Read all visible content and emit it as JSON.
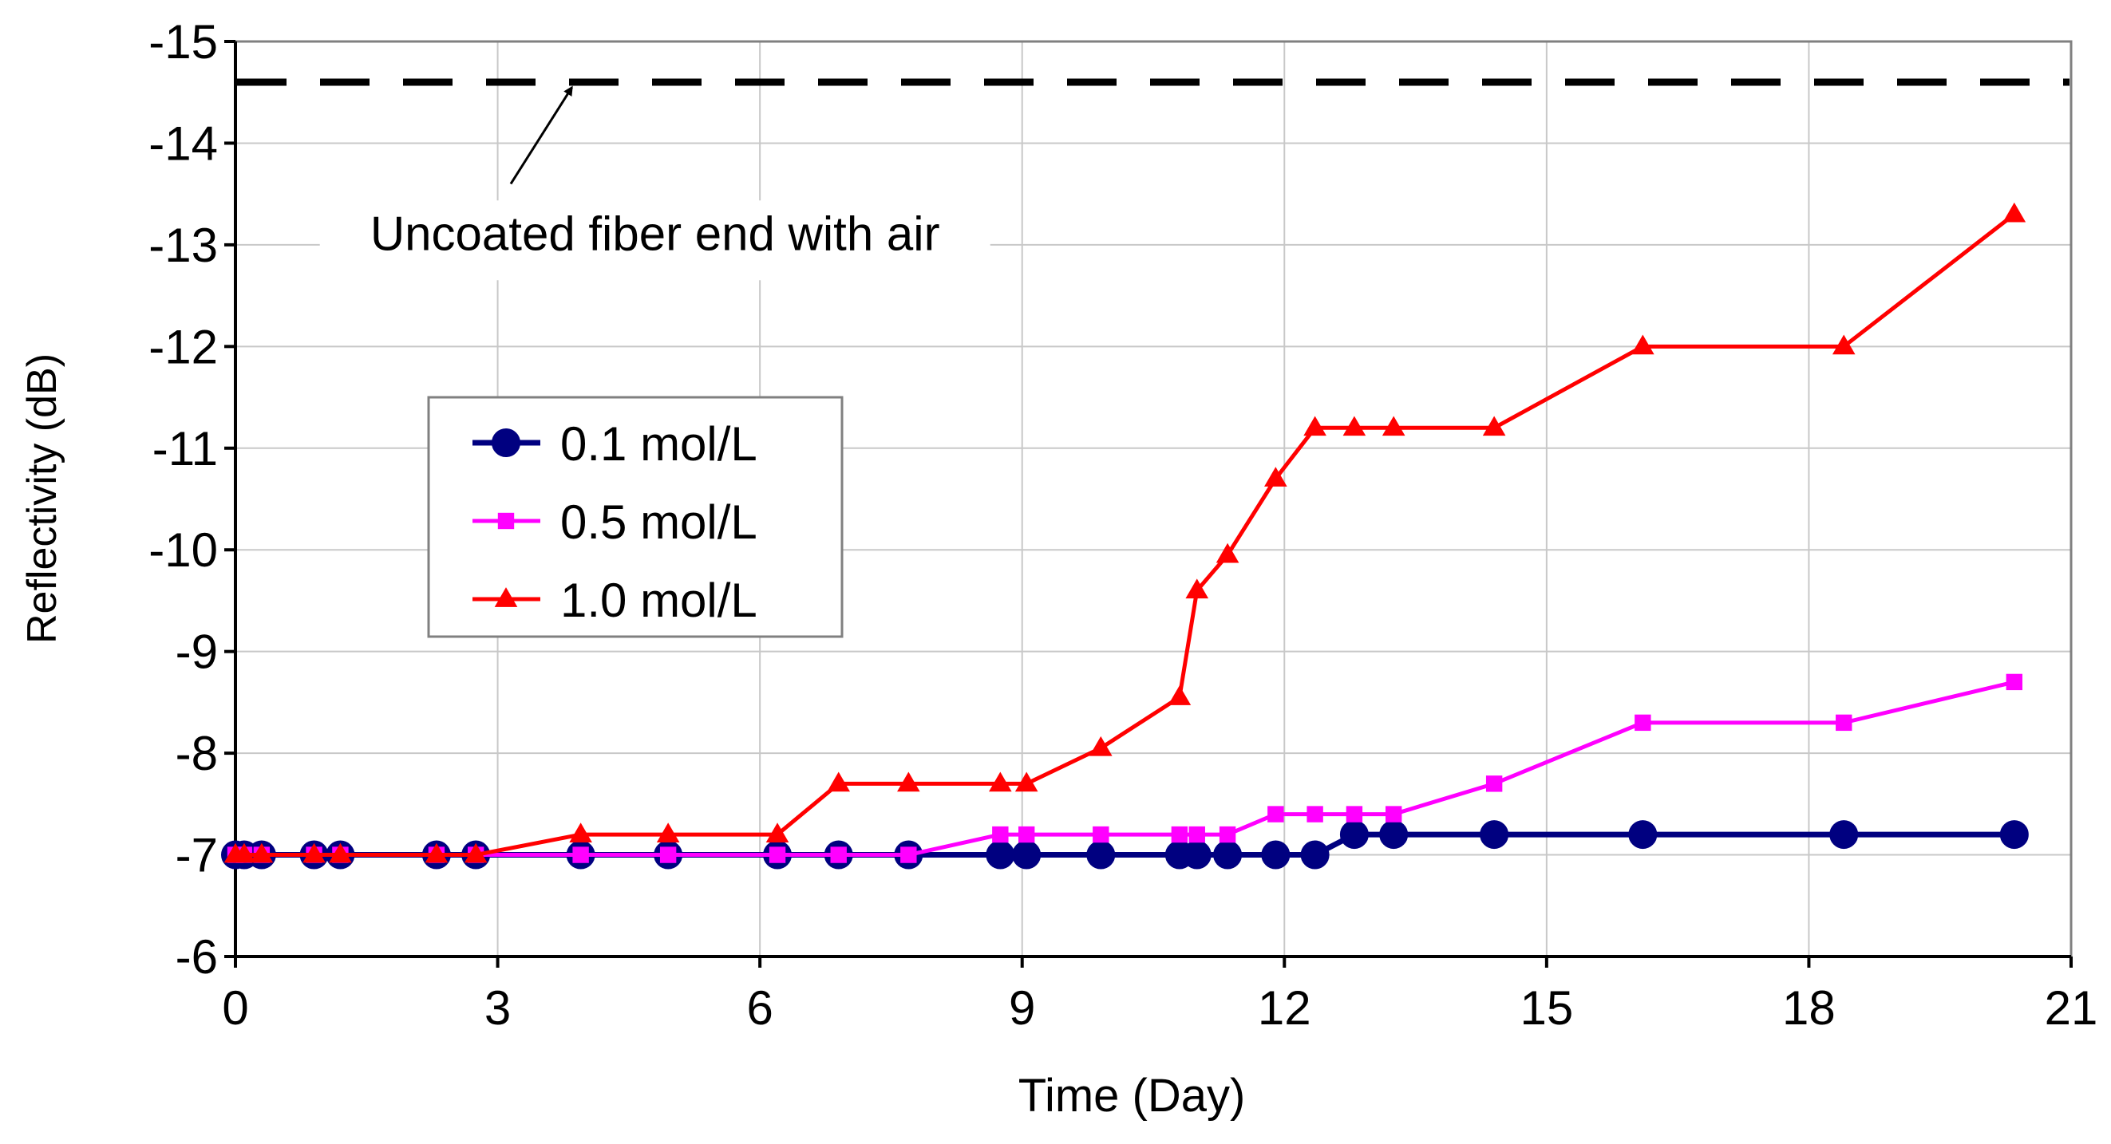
{
  "chart_data": {
    "type": "line",
    "title": "",
    "xlabel": "Time (Day)",
    "ylabel": "Reflectivity (dB)",
    "xlim": [
      0,
      21
    ],
    "ylim": [
      -6,
      -15
    ],
    "y_axis_inverted": true,
    "grid": true,
    "xticks": [
      0,
      3,
      6,
      9,
      12,
      15,
      18,
      21
    ],
    "yticks": [
      -15,
      -14,
      -13,
      -12,
      -11,
      -10,
      -9,
      -8,
      -7,
      -6
    ],
    "legend_position": "upper-left",
    "series": [
      {
        "name": "0.1 mol/L",
        "color": "#000080",
        "marker": "circle",
        "x": [
          0,
          0.1,
          0.3,
          0.9,
          1.2,
          2.3,
          2.75,
          3.95,
          4.95,
          6.2,
          6.9,
          7.7,
          8.75,
          9.05,
          9.9,
          10.8,
          11.0,
          11.35,
          11.9,
          12.35,
          12.8,
          13.25,
          14.4,
          16.1,
          18.4,
          20.35
        ],
        "y": [
          -7,
          -7,
          -7,
          -7,
          -7,
          -7,
          -7,
          -7,
          -7,
          -7,
          -7,
          -7,
          -7,
          -7,
          -7,
          -7,
          -7,
          -7,
          -7,
          -7,
          -7.2,
          -7.2,
          -7.2,
          -7.2,
          -7.2,
          -7.2
        ]
      },
      {
        "name": "0.5 mol/L",
        "color": "#ff00ff",
        "marker": "square",
        "x": [
          0,
          0.1,
          0.3,
          0.9,
          1.2,
          2.3,
          2.75,
          3.95,
          4.95,
          6.2,
          6.9,
          7.7,
          8.75,
          9.05,
          9.9,
          10.8,
          11.0,
          11.35,
          11.9,
          12.35,
          12.8,
          13.25,
          14.4,
          16.1,
          18.4,
          20.35
        ],
        "y": [
          -7,
          -7,
          -7,
          -7,
          -7,
          -7,
          -7,
          -7,
          -7,
          -7,
          -7,
          -7,
          -7.2,
          -7.2,
          -7.2,
          -7.2,
          -7.2,
          -7.2,
          -7.4,
          -7.4,
          -7.4,
          -7.4,
          -7.7,
          -8.3,
          -8.3,
          -8.7
        ]
      },
      {
        "name": "1.0 mol/L",
        "color": "#ff0000",
        "marker": "triangle",
        "x": [
          0,
          0.1,
          0.3,
          0.9,
          1.2,
          2.3,
          2.75,
          3.95,
          4.95,
          6.2,
          6.9,
          7.7,
          8.75,
          9.05,
          9.9,
          10.8,
          11.0,
          11.35,
          11.9,
          12.35,
          12.8,
          13.25,
          14.4,
          16.1,
          18.4,
          20.35
        ],
        "y": [
          -7,
          -7,
          -7,
          -7,
          -7,
          -7,
          -7,
          -7.2,
          -7.2,
          -7.2,
          -7.7,
          -7.7,
          -7.7,
          -7.7,
          -8.05,
          -8.55,
          -9.6,
          -9.95,
          -10.7,
          -11.2,
          -11.2,
          -11.2,
          -11.2,
          -12.0,
          -12.0,
          -13.3
        ]
      }
    ],
    "reference_line": {
      "y": -14.6,
      "style": "dashed",
      "color": "#000000"
    },
    "annotations": [
      {
        "text": "Uncoated fiber end with air",
        "text_at": [
          4.8,
          -12.95
        ],
        "arrow_from": [
          3.15,
          -13.6
        ],
        "arrow_to": [
          3.85,
          -14.55
        ]
      }
    ]
  }
}
